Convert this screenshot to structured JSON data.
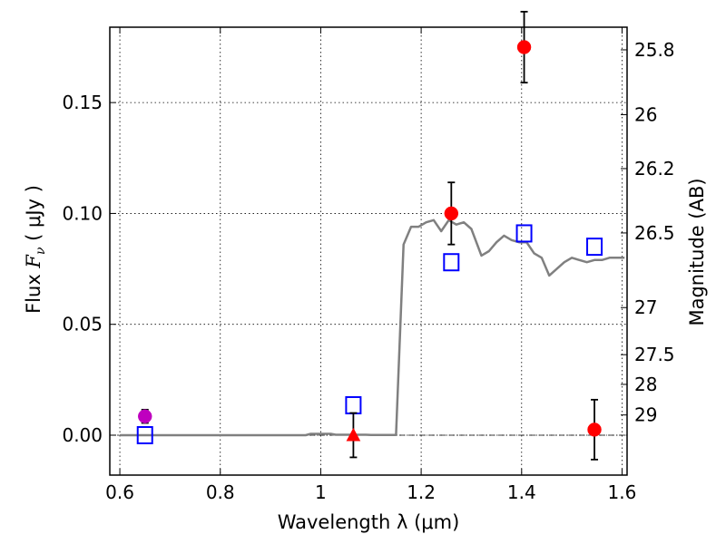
{
  "chart_data": {
    "type": "scatter",
    "title": "",
    "xlabel": "Wavelength  λ (μm)",
    "ylabel": "Flux  F_ν  ( μJy )",
    "ylabel_parts": {
      "prefix": "Flux  ",
      "symbol": "F",
      "subscript": "ν",
      "suffix": "  ( μJy )"
    },
    "y2label": "Magnitude (AB)",
    "xlim": [
      0.58,
      1.61
    ],
    "ylim": [
      -0.018,
      0.184
    ],
    "grid": true,
    "xticks": [
      {
        "value": 0.6,
        "label": "0.6"
      },
      {
        "value": 0.8,
        "label": "0.8"
      },
      {
        "value": 1.0,
        "label": "1"
      },
      {
        "value": 1.2,
        "label": "1.2"
      },
      {
        "value": 1.4,
        "label": "1.4"
      },
      {
        "value": 1.6,
        "label": "1.6"
      }
    ],
    "yticks": [
      {
        "value": 0.0,
        "label": "0.00"
      },
      {
        "value": 0.05,
        "label": "0.05"
      },
      {
        "value": 0.1,
        "label": "0.10"
      },
      {
        "value": 0.15,
        "label": "0.15"
      }
    ],
    "y2ticks": [
      {
        "mag": 25.8,
        "label": "25.8"
      },
      {
        "mag": 26.0,
        "label": "26"
      },
      {
        "mag": 26.2,
        "label": "26.2"
      },
      {
        "mag": 26.5,
        "label": "26.5"
      },
      {
        "mag": 27.0,
        "label": "27"
      },
      {
        "mag": 27.5,
        "label": "27.5"
      },
      {
        "mag": 28.0,
        "label": "28"
      },
      {
        "mag": 29.0,
        "label": "29"
      }
    ],
    "zero_line": 0.0,
    "model_spectrum": {
      "color": "#808080",
      "x": [
        0.6,
        0.97,
        0.98,
        1.02,
        1.03,
        1.09,
        1.1,
        1.15,
        1.165,
        1.18,
        1.195,
        1.21,
        1.225,
        1.24,
        1.255,
        1.27,
        1.285,
        1.3,
        1.32,
        1.335,
        1.35,
        1.365,
        1.38,
        1.395,
        1.41,
        1.425,
        1.44,
        1.455,
        1.47,
        1.485,
        1.5,
        1.515,
        1.53,
        1.545,
        1.56,
        1.575,
        1.59,
        1.605
      ],
      "y": [
        0.0,
        0.0,
        0.0006,
        0.0006,
        0.0002,
        0.0002,
        0.0001,
        0.0001,
        0.086,
        0.094,
        0.094,
        0.096,
        0.097,
        0.092,
        0.097,
        0.095,
        0.096,
        0.093,
        0.081,
        0.083,
        0.087,
        0.09,
        0.088,
        0.087,
        0.087,
        0.082,
        0.08,
        0.072,
        0.075,
        0.078,
        0.08,
        0.079,
        0.078,
        0.079,
        0.079,
        0.08,
        0.08,
        0.08
      ]
    },
    "model_points": {
      "color": "#0000ff",
      "x": [
        0.65,
        1.065,
        1.26,
        1.405,
        1.545
      ],
      "y": [
        0.0,
        0.0135,
        0.078,
        0.091,
        0.085
      ]
    },
    "measurements": [
      {
        "x": 0.65,
        "y": 0.0085,
        "err": 0.003,
        "color": "#bf00bf",
        "marker": "circle"
      },
      {
        "x": 1.065,
        "y": 0.0,
        "err": 0.01,
        "color": "#ff0000",
        "marker": "triangle"
      },
      {
        "x": 1.26,
        "y": 0.1,
        "err": 0.014,
        "color": "#ff0000",
        "marker": "circle"
      },
      {
        "x": 1.405,
        "y": 0.175,
        "err": 0.016,
        "color": "#ff0000",
        "marker": "circle"
      },
      {
        "x": 1.545,
        "y": 0.0025,
        "err": 0.0135,
        "color": "#ff0000",
        "marker": "circle"
      }
    ]
  }
}
